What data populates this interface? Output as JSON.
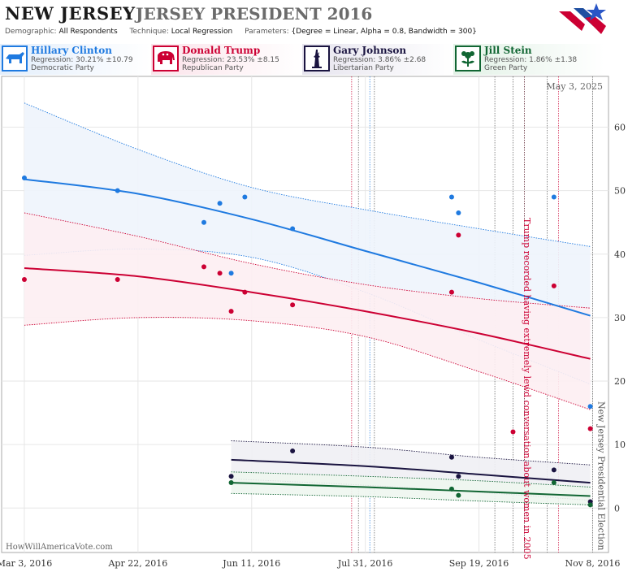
{
  "header": {
    "state": "NEW JERSEY",
    "race": "JERSEY PRESIDENT 2016",
    "params": [
      {
        "label": "Demographic:",
        "value": "All Respondents"
      },
      {
        "label": "Technique:",
        "value": "Local Regression"
      },
      {
        "label": "Parameters:",
        "value": "{Degree = Linear, Alpha = 0.8, Bandwidth = 300}"
      }
    ]
  },
  "candidates": [
    {
      "name": "Hillary Clinton",
      "regression": "Regression: 30.21% ±10.79",
      "party": "Democratic Party",
      "color": "#1f7ae0",
      "icon": "donkey-icon"
    },
    {
      "name": "Donald Trump",
      "regression": "Regression: 23.53% ±8.15",
      "party": "Republican Party",
      "color": "#cc0033",
      "icon": "elephant-icon"
    },
    {
      "name": "Gary Johnson",
      "regression": "Regression: 3.86% ±2.68",
      "party": "Libertarian Party",
      "color": "#1a1440",
      "icon": "liberty-icon"
    },
    {
      "name": "Jill Stein",
      "regression": "Regression: 1.86% ±1.38",
      "party": "Green Party",
      "color": "#116633",
      "icon": "green-flower-icon"
    }
  ],
  "chart_data": {
    "type": "scatter",
    "date_label": "May 3, 2025",
    "watermark": "HowWillAmericaVote.com",
    "x_range": [
      "2016-02-22",
      "2016-11-15"
    ],
    "ylim": [
      -7,
      68
    ],
    "y_ticks": [
      0,
      10,
      20,
      30,
      40,
      50,
      60
    ],
    "x_ticks": [
      {
        "date": "2016-03-03",
        "label": "Mar 3, 2016"
      },
      {
        "date": "2016-04-22",
        "label": "Apr 22, 2016"
      },
      {
        "date": "2016-06-11",
        "label": "Jun 11, 2016"
      },
      {
        "date": "2016-07-31",
        "label": "Jul 31, 2016"
      },
      {
        "date": "2016-09-19",
        "label": "Sep 19, 2016"
      },
      {
        "date": "2016-11-08",
        "label": "Nov 8, 2016"
      }
    ],
    "events": [
      {
        "date": "2016-10-07",
        "label": "Trump recorded having extremely lewd conversation about women in 2005"
      },
      {
        "date": "2016-11-08",
        "label": "New Jersey Presidential Election"
      }
    ],
    "event_lines": [
      {
        "date": "2016-07-25",
        "color": "#cc0033"
      },
      {
        "date": "2016-07-28",
        "color": "#555555"
      },
      {
        "date": "2016-08-02",
        "color": "#1f7ae0"
      },
      {
        "date": "2016-08-04",
        "color": "#555555"
      },
      {
        "date": "2016-09-26",
        "color": "#555555"
      },
      {
        "date": "2016-10-04",
        "color": "#555555"
      },
      {
        "date": "2016-10-09",
        "color": "#cc0033"
      },
      {
        "date": "2016-10-09",
        "color": "#555555"
      },
      {
        "date": "2016-10-19",
        "color": "#555555"
      },
      {
        "date": "2016-10-24",
        "color": "#cc0033"
      },
      {
        "date": "2016-11-08",
        "color": "#555555"
      }
    ],
    "series": [
      {
        "name": "Hillary Clinton",
        "color": "#1f7ae0",
        "band": "#eef4fc",
        "points": [
          [
            "2016-03-03",
            52
          ],
          [
            "2016-04-13",
            50
          ],
          [
            "2016-05-21",
            45
          ],
          [
            "2016-05-28",
            48
          ],
          [
            "2016-06-02",
            37
          ],
          [
            "2016-06-08",
            49
          ],
          [
            "2016-06-29",
            44
          ],
          [
            "2016-09-07",
            49
          ],
          [
            "2016-09-10",
            46.5
          ],
          [
            "2016-10-22",
            49
          ],
          [
            "2016-11-07",
            16
          ]
        ],
        "fit": [
          [
            "2016-03-03",
            51.8
          ],
          [
            "2016-04-22",
            49.5
          ],
          [
            "2016-06-11",
            45.5
          ],
          [
            "2016-07-31",
            40.5
          ],
          [
            "2016-09-19",
            35.5
          ],
          [
            "2016-11-07",
            30.3
          ]
        ],
        "upper": [
          [
            "2016-03-03",
            63.8
          ],
          [
            "2016-04-22",
            56.5
          ],
          [
            "2016-06-11",
            50.5
          ],
          [
            "2016-07-31",
            47
          ],
          [
            "2016-09-19",
            44
          ],
          [
            "2016-11-07",
            41.2
          ]
        ],
        "lower": [
          [
            "2016-03-03",
            39.8
          ],
          [
            "2016-04-22",
            40.8
          ],
          [
            "2016-06-11",
            39.5
          ],
          [
            "2016-07-31",
            34
          ],
          [
            "2016-09-19",
            26.5
          ],
          [
            "2016-11-07",
            19.5
          ]
        ]
      },
      {
        "name": "Donald Trump",
        "color": "#cc0033",
        "band": "#fdeef2",
        "points": [
          [
            "2016-03-03",
            36
          ],
          [
            "2016-04-13",
            36
          ],
          [
            "2016-05-21",
            38
          ],
          [
            "2016-05-28",
            37
          ],
          [
            "2016-06-02",
            31
          ],
          [
            "2016-06-08",
            34
          ],
          [
            "2016-06-29",
            32
          ],
          [
            "2016-09-07",
            34
          ],
          [
            "2016-09-10",
            43
          ],
          [
            "2016-10-04",
            12
          ],
          [
            "2016-10-22",
            35
          ],
          [
            "2016-11-07",
            12.5
          ]
        ],
        "fit": [
          [
            "2016-03-03",
            37.8
          ],
          [
            "2016-04-22",
            36.5
          ],
          [
            "2016-06-11",
            34
          ],
          [
            "2016-07-31",
            31
          ],
          [
            "2016-09-19",
            27.5
          ],
          [
            "2016-11-07",
            23.5
          ]
        ],
        "upper": [
          [
            "2016-03-03",
            46.5
          ],
          [
            "2016-04-22",
            42.8
          ],
          [
            "2016-06-11",
            38.5
          ],
          [
            "2016-07-31",
            35.2
          ],
          [
            "2016-09-19",
            33
          ],
          [
            "2016-11-07",
            31.5
          ]
        ],
        "lower": [
          [
            "2016-03-03",
            28.8
          ],
          [
            "2016-04-22",
            30
          ],
          [
            "2016-06-11",
            29.5
          ],
          [
            "2016-07-31",
            27
          ],
          [
            "2016-09-19",
            21.5
          ],
          [
            "2016-11-07",
            15.5
          ]
        ]
      },
      {
        "name": "Gary Johnson",
        "color": "#1a1440",
        "band": "#efeff4",
        "points": [
          [
            "2016-06-02",
            5
          ],
          [
            "2016-06-29",
            9
          ],
          [
            "2016-09-07",
            8
          ],
          [
            "2016-09-10",
            5
          ],
          [
            "2016-10-22",
            6
          ],
          [
            "2016-11-07",
            1
          ]
        ],
        "fit": [
          [
            "2016-06-02",
            7.6
          ],
          [
            "2016-07-31",
            6.6
          ],
          [
            "2016-09-19",
            5.3
          ],
          [
            "2016-11-07",
            4
          ]
        ],
        "upper": [
          [
            "2016-06-02",
            10.6
          ],
          [
            "2016-07-31",
            9.6
          ],
          [
            "2016-09-19",
            8
          ],
          [
            "2016-11-07",
            6.8
          ]
        ],
        "lower": [
          [
            "2016-06-02",
            4.6
          ],
          [
            "2016-07-31",
            3.6
          ],
          [
            "2016-09-19",
            2.5
          ],
          [
            "2016-11-07",
            1.2
          ]
        ]
      },
      {
        "name": "Jill Stein",
        "color": "#116633",
        "band": "#eef6f0",
        "points": [
          [
            "2016-06-02",
            4
          ],
          [
            "2016-09-07",
            3
          ],
          [
            "2016-09-10",
            2
          ],
          [
            "2016-10-22",
            4
          ],
          [
            "2016-11-07",
            0.5
          ]
        ],
        "fit": [
          [
            "2016-06-02",
            4
          ],
          [
            "2016-07-31",
            3.3
          ],
          [
            "2016-09-19",
            2.6
          ],
          [
            "2016-11-07",
            1.9
          ]
        ],
        "upper": [
          [
            "2016-06-02",
            5.7
          ],
          [
            "2016-07-31",
            5
          ],
          [
            "2016-09-19",
            4.3
          ],
          [
            "2016-11-07",
            3.3
          ]
        ],
        "lower": [
          [
            "2016-06-02",
            2.3
          ],
          [
            "2016-07-31",
            1.8
          ],
          [
            "2016-09-19",
            1.1
          ],
          [
            "2016-11-07",
            0.5
          ]
        ]
      }
    ]
  }
}
